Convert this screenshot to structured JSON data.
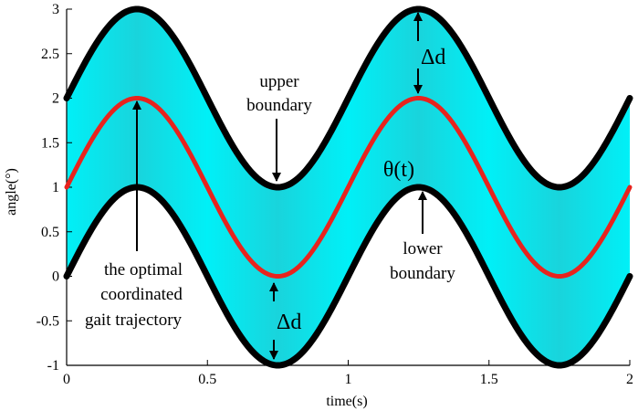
{
  "chart_data": {
    "type": "line",
    "title": "",
    "xlabel": "time(s)",
    "ylabel": "angle(°)",
    "xlim": [
      0,
      2
    ],
    "ylim": [
      -1,
      3
    ],
    "grid": false,
    "x_ticks": [
      0,
      0.5,
      1,
      1.5,
      2
    ],
    "x_tick_labels": [
      "0",
      "0.5",
      "1",
      "1.5",
      "2"
    ],
    "y_ticks": [
      -1,
      -0.5,
      0,
      0.5,
      1,
      1.5,
      2,
      2.5,
      3
    ],
    "y_tick_labels": [
      "-1",
      "-0.5",
      "0",
      "0.5",
      "1",
      "1.5",
      "2",
      "2.5",
      "3"
    ],
    "x": [
      0,
      0.25,
      0.5,
      0.75,
      1,
      1.25,
      1.5,
      1.75,
      2
    ],
    "series": [
      {
        "values": [
          2,
          3,
          2,
          1,
          2,
          3,
          2,
          1,
          2
        ],
        "color": "#000000"
      },
      {
        "values": [
          1,
          2,
          1,
          0,
          1,
          2,
          1,
          0,
          1
        ],
        "color": "#e8231d"
      },
      {
        "values": [
          0,
          1,
          0,
          -1,
          0,
          1,
          0,
          -1,
          0
        ],
        "color": "#000000"
      }
    ],
    "band_color": "#00ecf5",
    "annotations": {
      "upper_boundary": [
        "upper",
        "boundary"
      ],
      "lower_boundary": [
        "lower",
        "boundary"
      ],
      "theta": "θ(t)",
      "delta_top": "Δd",
      "delta_bottom": "Δd",
      "optimal": [
        "the optimal",
        "coordinated",
        "gait trajectory"
      ]
    }
  }
}
